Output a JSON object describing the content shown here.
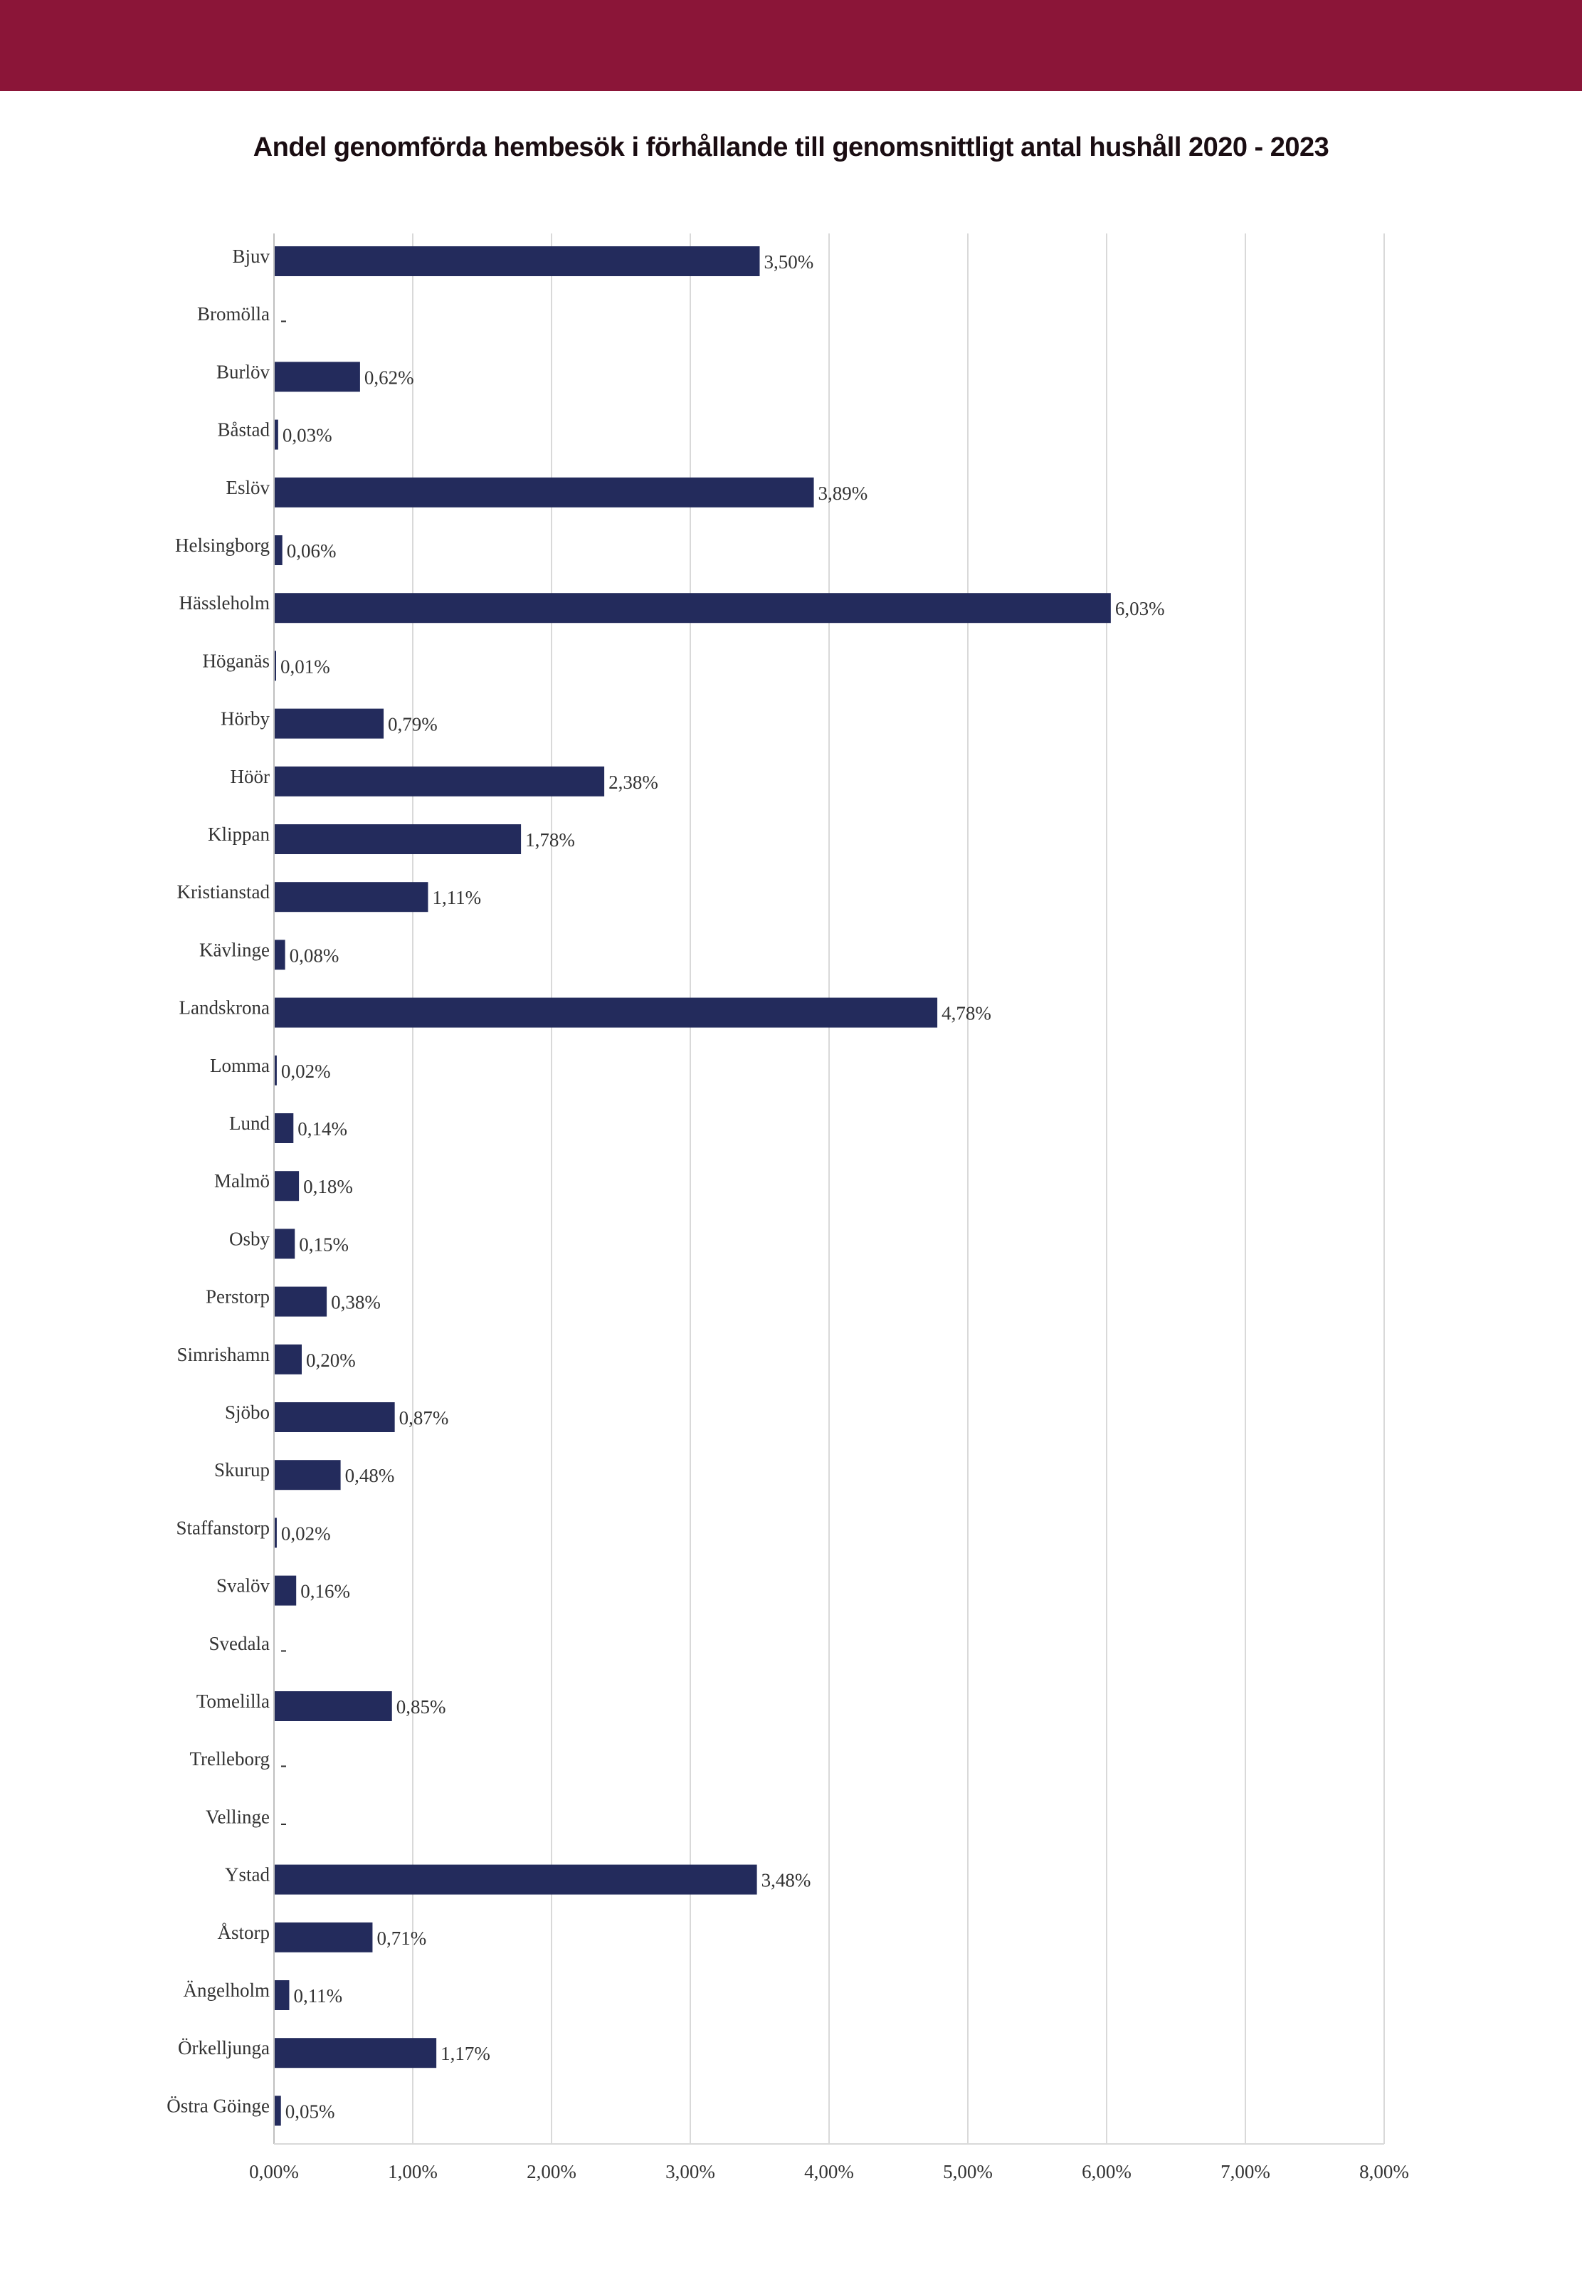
{
  "header": {
    "band_color": "#8b1538"
  },
  "chart_data": {
    "type": "bar",
    "orientation": "horizontal",
    "title": "Andel genomförda hembesök i förhållande till genomsnittligt antal hushåll 2020 - 2023",
    "xlabel": "",
    "ylabel": "",
    "xlim": [
      0,
      0.08
    ],
    "grid": true,
    "bar_color": "#232b5c",
    "x_ticks": [
      "0,00%",
      "1,00%",
      "2,00%",
      "3,00%",
      "4,00%",
      "5,00%",
      "6,00%",
      "7,00%",
      "8,00%"
    ],
    "categories": [
      "Bjuv",
      "Bromölla",
      "Burlöv",
      "Båstad",
      "Eslöv",
      "Helsingborg",
      "Hässleholm",
      "Höganäs",
      "Hörby",
      "Höör",
      "Klippan",
      "Kristianstad",
      "Kävlinge",
      "Landskrona",
      "Lomma",
      "Lund",
      "Malmö",
      "Osby",
      "Perstorp",
      "Simrishamn",
      "Sjöbo",
      "Skurup",
      "Staffanstorp",
      "Svalöv",
      "Svedala",
      "Tomelilla",
      "Trelleborg",
      "Vellinge",
      "Ystad",
      "Åstorp",
      "Ängelholm",
      "Örkelljunga",
      "Östra Göinge"
    ],
    "values": [
      0.035,
      0,
      0.0062,
      0.0003,
      0.0389,
      0.0006,
      0.0603,
      0.0001,
      0.0079,
      0.0238,
      0.0178,
      0.0111,
      0.0008,
      0.0478,
      0.0002,
      0.0014,
      0.0018,
      0.0015,
      0.0038,
      0.002,
      0.0087,
      0.0048,
      0.0002,
      0.0016,
      0,
      0.0085,
      0,
      0,
      0.0348,
      0.0071,
      0.0011,
      0.0117,
      0.0005
    ],
    "data_labels": [
      "3,50%",
      "-",
      "0,62%",
      "0,03%",
      "3,89%",
      "0,06%",
      "6,03%",
      "0,01%",
      "0,79%",
      "2,38%",
      "1,78%",
      "1,11%",
      "0,08%",
      "4,78%",
      "0,02%",
      "0,14%",
      "0,18%",
      "0,15%",
      "0,38%",
      "0,20%",
      "0,87%",
      "0,48%",
      "0,02%",
      "0,16%",
      "-",
      "0,85%",
      "-",
      "-",
      "3,48%",
      "0,71%",
      "0,11%",
      "1,17%",
      "0,05%"
    ]
  }
}
